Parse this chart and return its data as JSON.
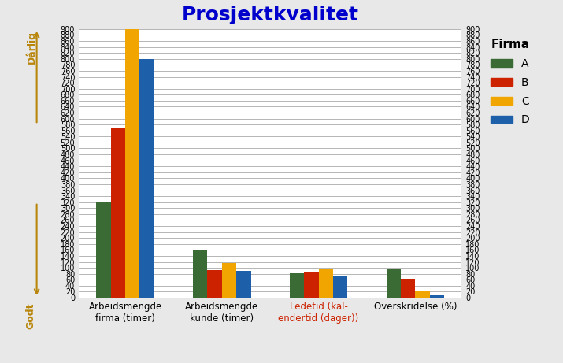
{
  "title": "Prosjektkvalitet",
  "title_color": "#0000CC",
  "categories": [
    "Arbeidsmengde\nfirma (timer)",
    "Arbeidsmengde\nkunde (timer)",
    "Ledetid (kal-\nendertid (dager))",
    "Overskridelse (%)"
  ],
  "firms": [
    "A",
    "B",
    "C",
    "D"
  ],
  "colors": [
    "#3a6b35",
    "#cc2200",
    "#f0a500",
    "#1e5faa"
  ],
  "values": {
    "A": [
      320,
      160,
      82,
      98
    ],
    "B": [
      568,
      92,
      88,
      63
    ],
    "C": [
      900,
      115,
      95,
      22
    ],
    "D": [
      800,
      90,
      70,
      8
    ]
  },
  "ylim": [
    0,
    900
  ],
  "ytick_step": 20,
  "ylabel_top": "Dårlig",
  "ylabel_bottom": "Godt",
  "legend_title": "Firma",
  "plot_bg_color": "#ffffff",
  "fig_bg_color": "#e8e8e8",
  "ledetid_xlabel_color": "#cc2200",
  "arrow_color": "#b8860b"
}
